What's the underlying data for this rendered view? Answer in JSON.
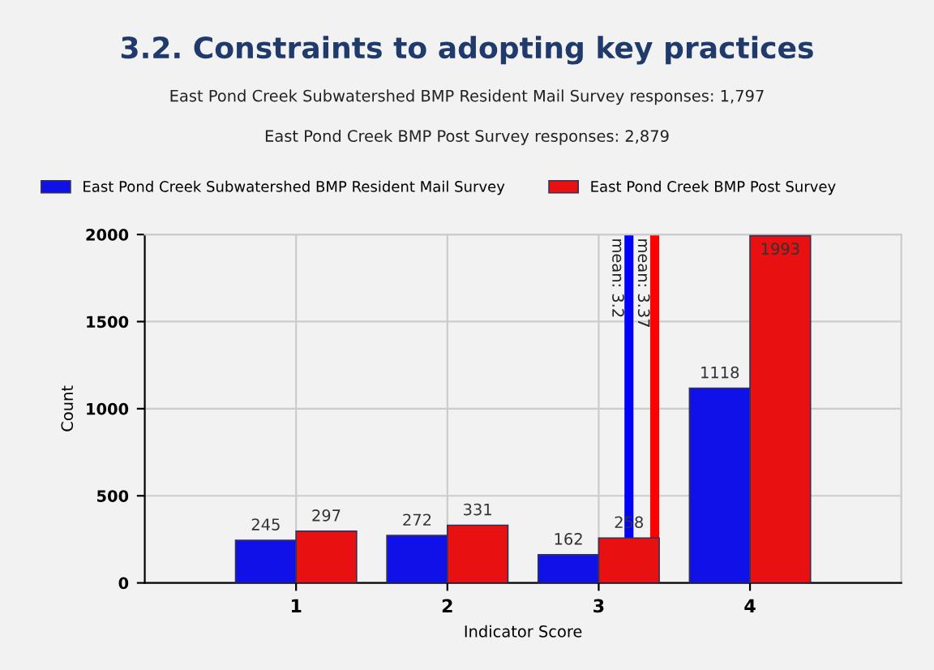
{
  "chart_data": {
    "type": "bar",
    "title": "3.2. Constraints to adopting key practices",
    "subtitle": "East Pond Creek Subwatershed BMP Resident Mail Survey responses: 1,797\nEast Pond Creek BMP Post Survey responses: 2,879",
    "xlabel": "Indicator Score",
    "ylabel": "Count",
    "x": [
      1,
      2,
      3,
      4
    ],
    "series": [
      {
        "name": "East Pond Creek Subwatershed BMP Resident Mail Survey",
        "color": "#1010e8",
        "values": [
          245,
          272,
          162,
          1118
        ]
      },
      {
        "name": "East Pond Creek BMP Post Survey",
        "color": "#e81010",
        "values": [
          297,
          331,
          258,
          1993
        ]
      }
    ],
    "data_labels": true,
    "xlim": [
      0,
      5
    ],
    "xticks": [
      1,
      2,
      3,
      4
    ],
    "ylim": [
      0,
      2000
    ],
    "yticks": [
      0,
      500,
      1000,
      1500,
      2000
    ],
    "ref_lines": [
      {
        "axis": "x",
        "value": 3.2,
        "label": "mean: 3.2",
        "color": "#0000ff"
      },
      {
        "axis": "x",
        "value": 3.37,
        "label": "mean: 3.37",
        "color": "#ff0000"
      }
    ],
    "grid": true,
    "legend": "top left"
  }
}
